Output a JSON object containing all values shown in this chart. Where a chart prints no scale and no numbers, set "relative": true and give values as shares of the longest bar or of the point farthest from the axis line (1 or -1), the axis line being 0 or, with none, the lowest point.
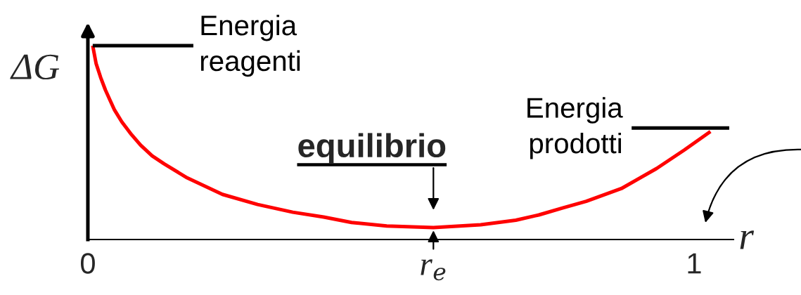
{
  "chart_data": {
    "type": "line",
    "relative": true,
    "xlabel": "r",
    "ylabel": "ΔG",
    "tick_labels": "x",
    "xlim": [
      0,
      1.065
    ],
    "xticks": [
      0,
      {
        "value": 0.57,
        "label": "r$_{e}$"
      },
      1
    ],
    "series": [
      {
        "color": "#ff0000",
        "x": [
          0.008,
          0.0135,
          0.021,
          0.029,
          0.037,
          0.044,
          0.056,
          0.072,
          0.087,
          0.106,
          0.126,
          0.164,
          0.222,
          0.28,
          0.338,
          0.389,
          0.435,
          0.493,
          0.57,
          0.648,
          0.706,
          0.744,
          0.783,
          0.822,
          0.88,
          0.938,
          0.984,
          1.027
        ],
        "values": [
          1,
          0.909,
          0.837,
          0.771,
          0.716,
          0.668,
          0.607,
          0.541,
          0.487,
          0.432,
          0.39,
          0.318,
          0.233,
          0.181,
          0.141,
          0.116,
          0.088,
          0.07,
          0.062,
          0.076,
          0.1,
          0.127,
          0.163,
          0.197,
          0.263,
          0.366,
          0.462,
          0.557
        ]
      },
      {
        "name": "Energia\nreagenti",
        "color": "#000000",
        "x": [
          0.008,
          0.174
        ],
        "values": [
          1,
          1
        ]
      },
      {
        "name": "Energia\nprodotti",
        "color": "#000000",
        "x": [
          0.897,
          1.058
        ],
        "values": [
          0.575,
          0.575
        ]
      }
    ],
    "annotations": [
      {
        "text": "equilibrio",
        "x": 0.57,
        "y": 0.062
      }
    ]
  }
}
